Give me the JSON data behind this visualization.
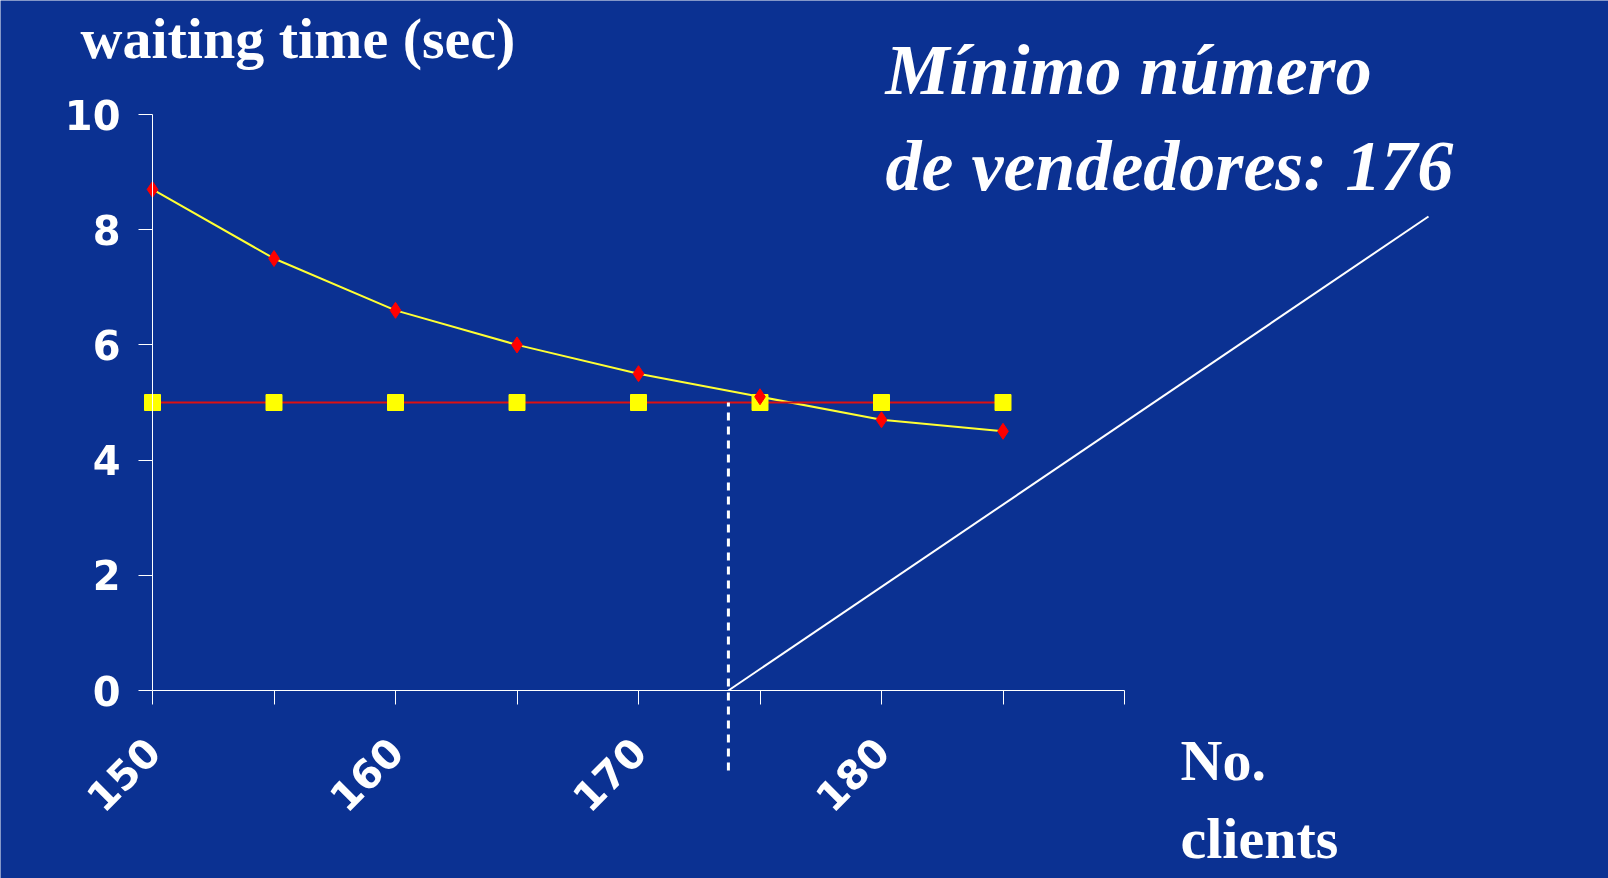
{
  "chart_data": {
    "type": "line",
    "ylabel": "waiting time (sec)",
    "xlabel": "No.\nclients",
    "x": [
      150,
      155,
      160,
      165,
      170,
      175,
      180,
      185
    ],
    "series": [
      {
        "color": "#ffff33",
        "colors": [
          "#ff0000",
          "#ff0000",
          "#ff0000",
          "#ff0000",
          "#ff0000",
          "#ff0000",
          "#ff0000",
          "#ff0000"
        ],
        "marker": "diamond",
        "values": [
          8.7,
          7.5,
          6.6,
          6.0,
          5.5,
          5.1,
          4.7,
          4.5
        ]
      },
      {
        "color": "#dd1111",
        "colors": [
          "#ffff00",
          "#ffff00",
          "#ffff00",
          "#ffff00",
          "#ffff00",
          "#ffff00",
          "#ffff00",
          "#ffff00"
        ],
        "marker": "square",
        "values": [
          5,
          5,
          5,
          5,
          5,
          5,
          5,
          5
        ]
      }
    ],
    "xlim": [
      150,
      190
    ],
    "xticks": [
      150,
      {
        "value": 155,
        "label": null
      },
      160,
      {
        "value": 165,
        "label": null
      },
      170,
      {
        "value": 175,
        "label": null
      },
      180,
      {
        "value": 185,
        "label": null
      },
      {
        "value": 190,
        "label": null
      }
    ],
    "ylim": [
      0,
      10
    ],
    "yticks": [
      0,
      2,
      4,
      6,
      8,
      10
    ],
    "grid": false,
    "ref_lines": [
      {
        "axis": "x",
        "value": 173.7,
        "line_style": "dashed",
        "color": "#ffffff"
      }
    ],
    "annotations": [
      {
        "text": "Mínimo número\nde vendedores: 176",
        "x": 173.7,
        "y": 0
      }
    ]
  }
}
